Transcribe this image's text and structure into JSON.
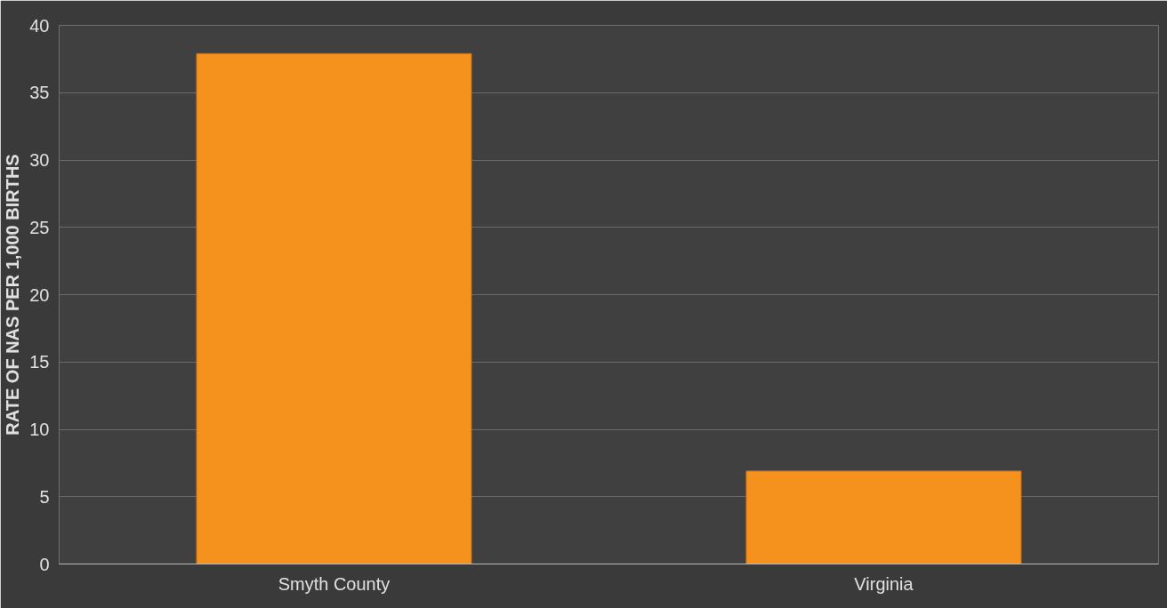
{
  "chart_data": {
    "type": "bar",
    "ylabel": "RATE OF NAS PER 1,000 BIRTHS",
    "categories": [
      "Smyth County",
      "Virginia"
    ],
    "values": [
      37.9,
      6.9
    ],
    "color": "#f5921e",
    "ylim": [
      0,
      40
    ],
    "yticks": [
      0,
      5,
      10,
      15,
      20,
      25,
      30,
      35,
      40
    ],
    "grid": "y"
  }
}
